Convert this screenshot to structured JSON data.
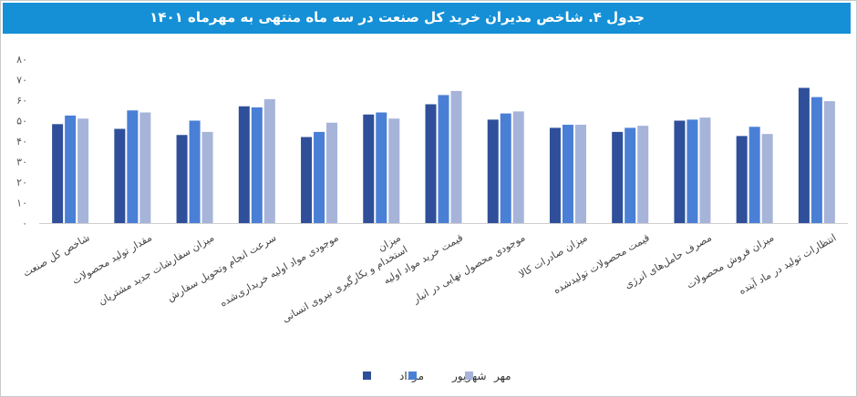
{
  "header": {
    "title": "جدول ۴. شاخص مدیران خرید کل صنعت در سه ماه منتهی به مهرماه ۱۴۰۱"
  },
  "colors": {
    "header_bg": "#1590d6",
    "series": [
      "#2f4f9a",
      "#4a7fd6",
      "#a6b4da"
    ]
  },
  "chart_data": {
    "type": "bar",
    "ylim": [
      0,
      80
    ],
    "yticks": [
      0,
      10,
      20,
      30,
      40,
      50,
      60,
      70,
      80
    ],
    "ytick_labels": [
      "۰",
      "۱۰",
      "۲۰",
      "۳۰",
      "۴۰",
      "۵۰",
      "۶۰",
      "۷۰",
      "۸۰"
    ],
    "grid": false,
    "legend_position": "bottom",
    "categories": [
      [
        "شاخص کل صنعت"
      ],
      [
        "مقدار تولید محصولات"
      ],
      [
        "میزان سفارشات جدید مشتریان"
      ],
      [
        "سرعت انجام وتحویل سفارش"
      ],
      [
        "موجودی مواد اولیه خریداری‌شده"
      ],
      [
        "میزان",
        "استخدام و بکارگیری نیروی انسانی"
      ],
      [
        "قیمت خرید مواد اولیه"
      ],
      [
        "موجودی محصول نهایی در انبار"
      ],
      [
        "میزان صادرات کالا"
      ],
      [
        "قیمت محصولات تولیدشده"
      ],
      [
        "مصرف حامل‌های انرژی"
      ],
      [
        "میزان فروش محصولات"
      ],
      [
        "انتظارات تولید در ماد آینده"
      ]
    ],
    "series": [
      {
        "name": "مرداد",
        "values": [
          48.3,
          46.0,
          43.0,
          57.0,
          42.0,
          53.0,
          58.0,
          50.5,
          46.5,
          44.5,
          50.0,
          42.5,
          66.0
        ]
      },
      {
        "name": "شهریور",
        "values": [
          52.5,
          55.0,
          50.0,
          56.5,
          44.5,
          54.0,
          62.5,
          53.5,
          48.0,
          46.5,
          50.5,
          47.0,
          61.5
        ]
      },
      {
        "name": "مهر",
        "values": [
          51.0,
          54.0,
          44.5,
          60.5,
          49.0,
          51.0,
          64.5,
          54.5,
          48.0,
          47.5,
          51.5,
          43.5,
          59.5
        ]
      }
    ]
  }
}
